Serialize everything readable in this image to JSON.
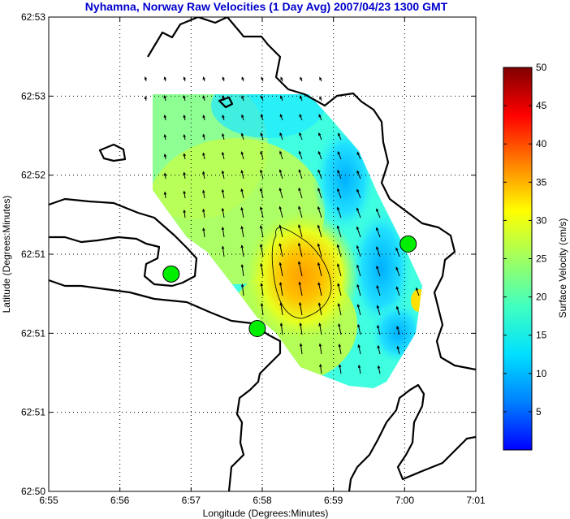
{
  "chart_data": {
    "type": "heatmap",
    "title": "Nyhamna, Norway Raw Velocities (1 Day Avg) 2007/04/23 1300 GMT",
    "xlabel": "Longitude (Degrees:Minutes)",
    "ylabel": "Latitude (Degrees:Minutes)",
    "x_ticks": [
      "6:55",
      "6:56",
      "6:57",
      "6:58",
      "6:59",
      "7:00",
      "7:01"
    ],
    "y_ticks": [
      "62:53",
      "62:53",
      "62:52",
      "62:51",
      "62:51",
      "62:51",
      "62:50"
    ],
    "grid": true,
    "colorbar": {
      "label": "Surface Velocity (cm/s)",
      "range": [
        0,
        50
      ],
      "ticks": [
        "5",
        "10",
        "15",
        "20",
        "25",
        "30",
        "35",
        "40",
        "45",
        "50"
      ],
      "colormap": "jet"
    },
    "coastline_color": "#000000",
    "velocity_field": {
      "min_speed": 3,
      "max_speed": 30,
      "peak": {
        "lon_minutes": 3.5,
        "lat_index": 3.0,
        "speed": 30
      },
      "prevailing_direction": "north-northwest"
    },
    "stations": [
      {
        "name": "",
        "lon_minutes": 1.72,
        "lat_index": 2.75,
        "color": "#00ee00"
      },
      {
        "name": "",
        "lon_minutes": 2.93,
        "lat_index": 2.06,
        "color": "#00ee00"
      },
      {
        "name": "",
        "lon_minutes": 5.05,
        "lat_index": 3.13,
        "color": "#00ee00"
      }
    ]
  }
}
